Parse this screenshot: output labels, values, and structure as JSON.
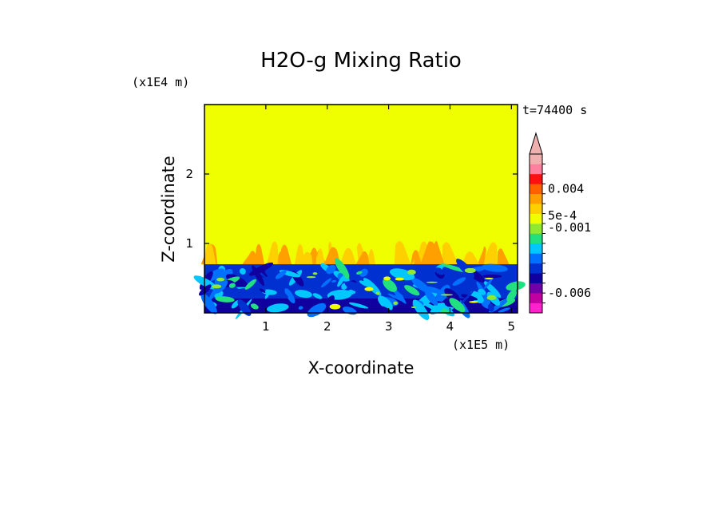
{
  "chart_data": {
    "type": "heatmap",
    "title": "H2O-g Mixing Ratio",
    "xlabel": "X-coordinate",
    "ylabel": "Z-coordinate",
    "x_scale_label": "(x1E5 m)",
    "y_scale_label": "(x1E4 m)",
    "time_label": "t=74400 s",
    "xlim": [
      0,
      5.1
    ],
    "ylim": [
      0,
      3.0
    ],
    "x_ticks": [
      1,
      2,
      3,
      4,
      5
    ],
    "x_tick_labels": [
      "1",
      "2",
      "3",
      "4",
      "5"
    ],
    "y_ticks": [
      1,
      2
    ],
    "y_tick_labels": [
      "1",
      "2"
    ],
    "colorbar": {
      "levels_colors": [
        "#ff22cc",
        "#c000a0",
        "#7000a8",
        "#1000a0",
        "#0030d0",
        "#0070ff",
        "#00c8ff",
        "#20e080",
        "#90e830",
        "#f0ff00",
        "#ffd000",
        "#ffa000",
        "#ff6000",
        "#ff1010",
        "#ff7f9f",
        "#f0b0b0"
      ],
      "labels": [
        {
          "text": "0.004",
          "level": 12.5
        },
        {
          "text": "5e-4",
          "level": 9.8
        },
        {
          "text": "-0.001",
          "level": 8.6
        },
        {
          "text": "-0.006",
          "level": 2.0
        }
      ]
    },
    "regions": {
      "upper_value_color": "#f0ff00",
      "boundary_layer_top": 0.7,
      "mixed_layer_top": 1.05
    }
  }
}
